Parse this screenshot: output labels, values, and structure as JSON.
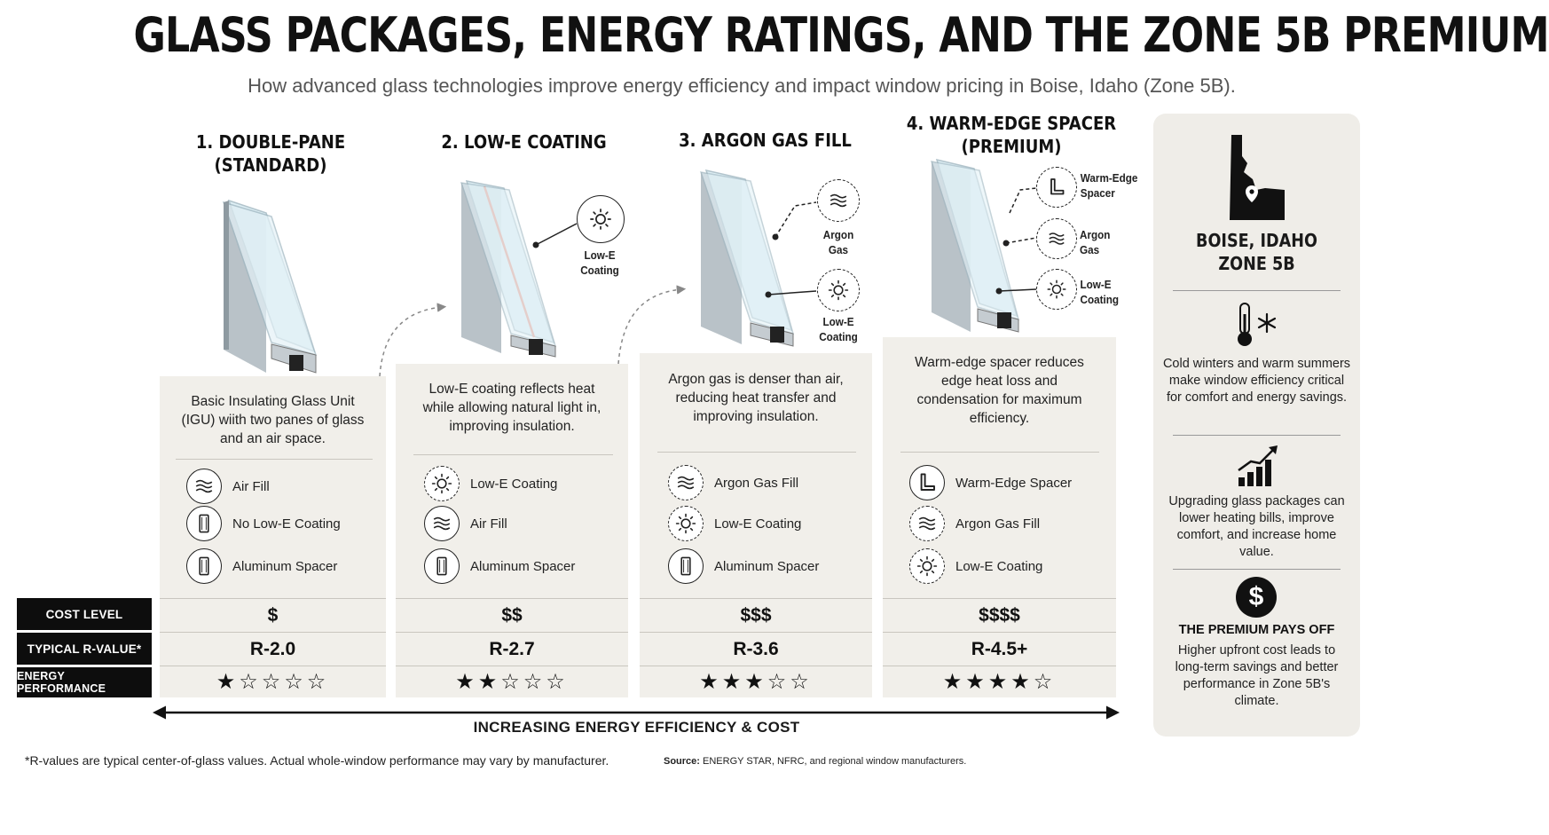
{
  "header": {
    "title": "GLASS PACKAGES, ENERGY RATINGS, AND THE ZONE 5B PREMIUM",
    "subtitle": "How advanced glass technologies improve energy efficiency and impact window pricing in Boise, Idaho (Zone 5B)."
  },
  "columns": [
    {
      "title_line1": "1. DOUBLE-PANE",
      "title_line2": "(STANDARD)",
      "description": "Basic Insulating Glass Unit (IGU) wiith two panes of glass and an air space.",
      "features": [
        {
          "icon": "air-wave-icon",
          "label": "Air Fill"
        },
        {
          "icon": "glass-pane-icon",
          "label": "No Low-E Coating"
        },
        {
          "icon": "spacer-bar-icon",
          "label": "Aluminum Spacer"
        }
      ],
      "cost": "$",
      "r_value": "R-2.0",
      "stars": 1
    },
    {
      "title_line1": "2. LOW-E COATING",
      "title_line2": "",
      "description": "Low-E coating reflects heat while allowing natural light in, improving insulation.",
      "features": [
        {
          "icon": "sun-icon",
          "label": "Low-E Coating"
        },
        {
          "icon": "air-wave-icon",
          "label": "Air Fill"
        },
        {
          "icon": "spacer-bar-icon",
          "label": "Aluminum Spacer"
        }
      ],
      "callouts": [
        {
          "icon": "sun-icon",
          "line1": "Low-E",
          "line2": "Coating"
        }
      ],
      "cost": "$$",
      "r_value": "R-2.7",
      "stars": 2
    },
    {
      "title_line1": "3. ARGON GAS FILL",
      "title_line2": "",
      "description": "Argon gas is denser than air, reducing heat transfer and improving insulation.",
      "features": [
        {
          "icon": "air-wave-icon",
          "label": "Argon Gas Fill"
        },
        {
          "icon": "sun-icon",
          "label": "Low-E Coating"
        },
        {
          "icon": "spacer-bar-icon",
          "label": "Aluminum Spacer"
        }
      ],
      "callouts": [
        {
          "icon": "air-wave-icon",
          "line1": "Argon",
          "line2": "Gas"
        },
        {
          "icon": "sun-icon",
          "line1": "Low-E",
          "line2": "Coating"
        }
      ],
      "cost": "$$$",
      "r_value": "R-3.6",
      "stars": 3
    },
    {
      "title_line1": "4. WARM-EDGE SPACER",
      "title_line2": "(PREMIUM)",
      "description": "Warm-edge spacer reduces edge heat loss and condensation for maximum efficiency.",
      "features": [
        {
          "icon": "l-spacer-icon",
          "label": "Warm-Edge Spacer"
        },
        {
          "icon": "air-wave-icon",
          "label": "Argon Gas Fill"
        },
        {
          "icon": "sun-icon",
          "label": "Low-E Coating"
        }
      ],
      "callouts": [
        {
          "icon": "l-spacer-icon",
          "line1": "Warm-Edge",
          "line2": "Spacer"
        },
        {
          "icon": "air-wave-icon",
          "line1": "Argon",
          "line2": "Gas"
        },
        {
          "icon": "sun-icon",
          "line1": "Low-E",
          "line2": "Coating"
        }
      ],
      "cost": "$$$$",
      "r_value": "R-4.5+",
      "stars": 4
    }
  ],
  "rows": {
    "cost": "COST LEVEL",
    "r_value": "TYPICAL R-VALUE*",
    "energy": "ENERGY PERFORMANCE"
  },
  "stars_max": 5,
  "sidebar": {
    "title_line1": "BOISE, IDAHO",
    "title_line2": "ZONE 5B",
    "item1": "Cold winters and warm summers make window efficiency critical for comfort and energy savings.",
    "item2": "Upgrading glass packages can lower heating bills, improve comfort, and increase home value.",
    "premium_head": "THE PREMIUM PAYS OFF",
    "premium_text": "Higher upfront cost leads to long-term savings and better performance in Zone 5B's climate.",
    "dollar": "$"
  },
  "axis": {
    "label": "INCREASING ENERGY EFFICIENCY & COST"
  },
  "footer": {
    "footnote": "*R-values are typical center-of-glass values. Actual whole-window performance may vary by manufacturer.",
    "source_label": "Source:",
    "source_text": " ENERGY STAR, NFRC, and regional window manufacturers."
  },
  "colors": {
    "glass": "#d6ecf3",
    "frame": "#b9c2c8",
    "low_e": "#e59a8a",
    "ink": "#111111",
    "panel": "#f1efea"
  }
}
